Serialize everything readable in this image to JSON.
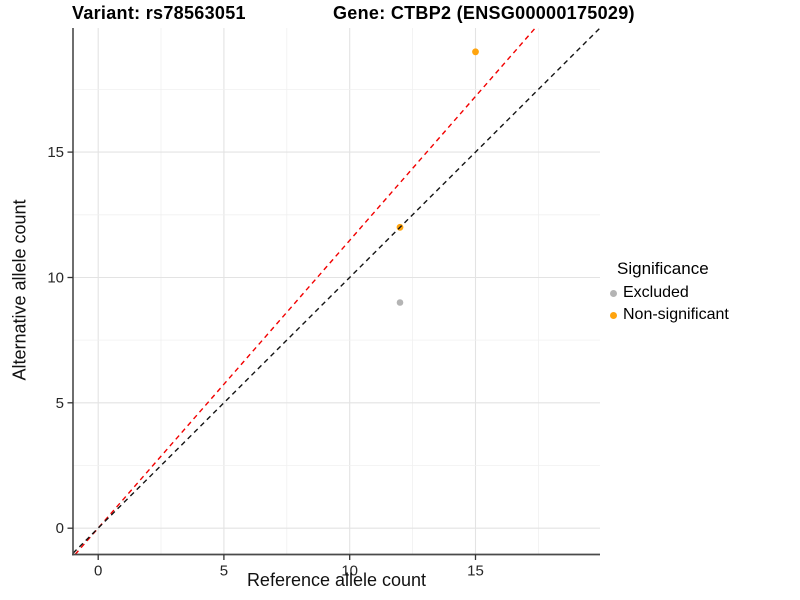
{
  "chart_data": {
    "type": "scatter",
    "titles": {
      "left": "Variant: rs78563051",
      "right": "Gene: CTBP2 (ENSG00000175029)"
    },
    "xlabel": "Reference allele count",
    "ylabel": "Alternative allele count",
    "xlim": [
      -1,
      19.95
    ],
    "ylim": [
      -1.05,
      19.95
    ],
    "x_ticks": [
      0,
      5,
      10,
      15
    ],
    "y_ticks": [
      0,
      5,
      10,
      15
    ],
    "minor_grid_step": 2.5,
    "grid": true,
    "series": [
      {
        "name": "Excluded",
        "color": "#B4B4B4",
        "point_radius": 3.3,
        "points": [
          [
            12,
            9
          ]
        ]
      },
      {
        "name": "Non-significant",
        "color": "#FFA40E",
        "point_radius": 3.4,
        "points": [
          [
            12,
            12
          ],
          [
            15,
            19
          ]
        ]
      }
    ],
    "ref_lines": [
      {
        "name": "ratio-line",
        "color": "#F20000",
        "slope": 1.148,
        "intercept": 0,
        "dash": "5,4"
      },
      {
        "name": "identity-line",
        "color": "#141414",
        "slope": 1,
        "intercept": 0,
        "dash": "5,4"
      }
    ],
    "legend": {
      "title": "Significance",
      "position": "right",
      "items": [
        {
          "label": "Excluded",
          "color": "#B4B4B4"
        },
        {
          "label": "Non-significant",
          "color": "#FFA40E"
        }
      ]
    }
  }
}
